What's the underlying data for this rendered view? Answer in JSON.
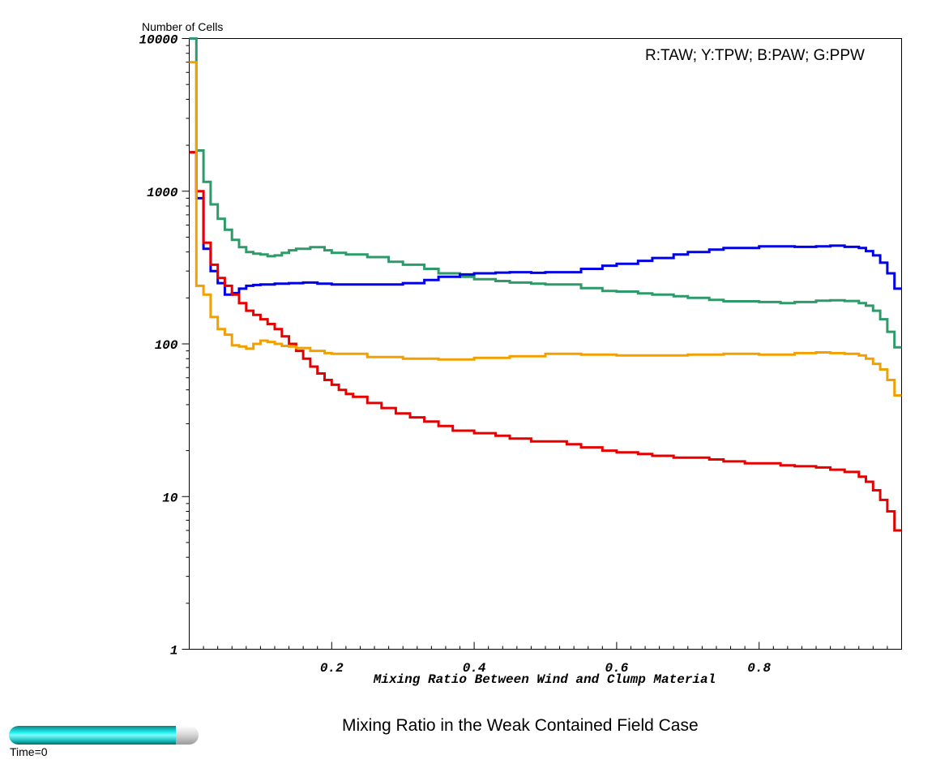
{
  "chart_data": {
    "type": "line",
    "step": true,
    "ylabel": "Number of Cells",
    "xlabel": "Mixing Ratio Between Wind and Clump Material",
    "annotation": "R:TAW; Y:TPW; B:PAW; G:PPW",
    "caption": "Mixing Ratio in the Weak Contained Field Case",
    "yscale": "log",
    "xlim": [
      0.0,
      1.0
    ],
    "ylim": [
      1,
      10000
    ],
    "xticks": [
      0.2,
      0.4,
      0.6,
      0.8
    ],
    "yticks": [
      1,
      10,
      100,
      1000,
      10000
    ],
    "colors": {
      "R": "#e60000",
      "Y": "#f2a000",
      "B": "#0000e6",
      "G": "#2e9a6a"
    },
    "series": [
      {
        "key": "G",
        "x": [
          0.0,
          0.01,
          0.02,
          0.03,
          0.04,
          0.05,
          0.06,
          0.07,
          0.08,
          0.09,
          0.1,
          0.11,
          0.12,
          0.13,
          0.14,
          0.15,
          0.17,
          0.19,
          0.2,
          0.22,
          0.25,
          0.28,
          0.3,
          0.33,
          0.35,
          0.38,
          0.4,
          0.43,
          0.45,
          0.48,
          0.5,
          0.55,
          0.58,
          0.6,
          0.63,
          0.65,
          0.68,
          0.7,
          0.73,
          0.75,
          0.8,
          0.83,
          0.85,
          0.88,
          0.9,
          0.92,
          0.94,
          0.95,
          0.96,
          0.97,
          0.98,
          0.99
        ],
        "y": [
          10000,
          1850,
          1150,
          820,
          660,
          560,
          480,
          430,
          400,
          390,
          385,
          375,
          380,
          395,
          410,
          420,
          430,
          410,
          395,
          385,
          370,
          345,
          330,
          310,
          290,
          275,
          265,
          258,
          252,
          248,
          245,
          232,
          222,
          220,
          214,
          210,
          205,
          200,
          194,
          190,
          188,
          185,
          188,
          192,
          193,
          191,
          185,
          178,
          165,
          145,
          120,
          95
        ]
      },
      {
        "key": "B",
        "x": [
          0.0,
          0.01,
          0.02,
          0.03,
          0.04,
          0.05,
          0.06,
          0.07,
          0.08,
          0.09,
          0.1,
          0.12,
          0.14,
          0.16,
          0.18,
          0.2,
          0.25,
          0.3,
          0.33,
          0.35,
          0.38,
          0.4,
          0.43,
          0.45,
          0.48,
          0.5,
          0.55,
          0.58,
          0.6,
          0.63,
          0.65,
          0.68,
          0.7,
          0.73,
          0.75,
          0.8,
          0.85,
          0.88,
          0.9,
          0.92,
          0.94,
          0.95,
          0.96,
          0.97,
          0.98,
          0.99
        ],
        "y": [
          1800,
          900,
          420,
          300,
          250,
          210,
          215,
          230,
          240,
          243,
          245,
          248,
          250,
          252,
          248,
          245,
          245,
          250,
          262,
          275,
          285,
          290,
          293,
          295,
          292,
          295,
          310,
          325,
          335,
          350,
          365,
          385,
          400,
          415,
          425,
          435,
          432,
          435,
          440,
          432,
          425,
          405,
          380,
          340,
          290,
          230
        ]
      },
      {
        "key": "R",
        "x": [
          0.0,
          0.01,
          0.02,
          0.03,
          0.04,
          0.05,
          0.06,
          0.07,
          0.08,
          0.09,
          0.1,
          0.11,
          0.12,
          0.13,
          0.14,
          0.15,
          0.16,
          0.17,
          0.18,
          0.19,
          0.2,
          0.21,
          0.22,
          0.23,
          0.25,
          0.27,
          0.29,
          0.31,
          0.33,
          0.35,
          0.37,
          0.4,
          0.43,
          0.45,
          0.48,
          0.5,
          0.53,
          0.55,
          0.58,
          0.6,
          0.63,
          0.65,
          0.68,
          0.7,
          0.73,
          0.75,
          0.78,
          0.8,
          0.83,
          0.85,
          0.88,
          0.9,
          0.92,
          0.94,
          0.95,
          0.96,
          0.97,
          0.98,
          0.99
        ],
        "y": [
          1800,
          1000,
          460,
          330,
          270,
          240,
          210,
          185,
          165,
          155,
          145,
          135,
          125,
          112,
          100,
          90,
          80,
          71,
          64,
          58,
          54,
          50,
          47,
          45,
          41,
          38,
          35,
          33,
          31,
          29,
          27,
          26,
          25,
          24,
          23,
          23,
          22,
          21,
          20,
          19.5,
          19,
          18.5,
          18,
          18,
          17.5,
          17,
          16.5,
          16.5,
          16,
          15.8,
          15.5,
          15,
          14.5,
          13.5,
          12.5,
          11,
          9.5,
          8,
          6
        ]
      },
      {
        "key": "Y",
        "x": [
          0.0,
          0.01,
          0.02,
          0.03,
          0.04,
          0.05,
          0.06,
          0.07,
          0.08,
          0.09,
          0.1,
          0.11,
          0.12,
          0.13,
          0.14,
          0.15,
          0.17,
          0.19,
          0.2,
          0.25,
          0.3,
          0.35,
          0.4,
          0.45,
          0.5,
          0.55,
          0.6,
          0.65,
          0.7,
          0.75,
          0.8,
          0.85,
          0.88,
          0.9,
          0.92,
          0.94,
          0.95,
          0.96,
          0.97,
          0.98,
          0.99
        ],
        "y": [
          7000,
          240,
          210,
          150,
          125,
          115,
          98,
          96,
          93,
          100,
          105,
          103,
          100,
          97,
          96,
          94,
          90,
          87,
          86,
          82,
          80,
          79,
          81,
          83,
          86,
          85,
          84,
          84,
          85,
          86,
          85,
          87,
          88,
          87,
          86,
          84,
          80,
          74,
          68,
          58,
          46
        ]
      }
    ]
  },
  "time_slider": {
    "label": "Time=0",
    "progress": 0.88
  }
}
